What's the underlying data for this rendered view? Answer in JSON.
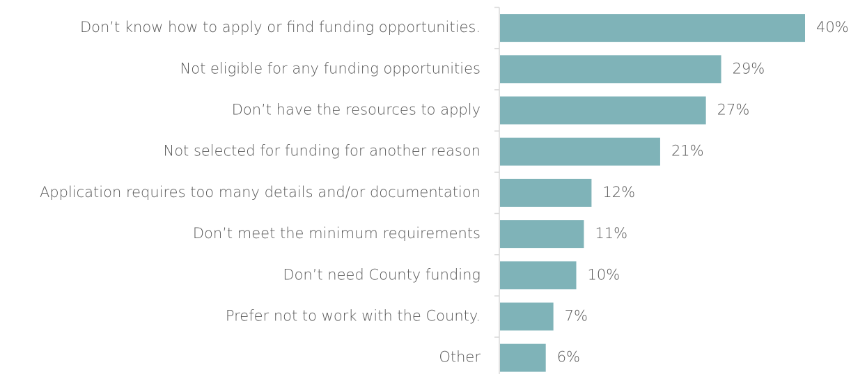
{
  "chart_data": {
    "type": "bar",
    "orientation": "horizontal",
    "categories": [
      "Don’t know how to apply or find funding opportunities.",
      "Not eligible for any funding opportunities",
      "Don’t have the resources to apply",
      "Not selected for funding for another reason",
      "Application requires too many details and/or documentation",
      "Don’t meet the minimum requirements",
      "Don’t need County funding",
      "Prefer not to work with the County.",
      "Other"
    ],
    "values": [
      40,
      29,
      27,
      21,
      12,
      11,
      10,
      7,
      6
    ],
    "value_labels": [
      "40%",
      "29%",
      "27%",
      "21%",
      "12%",
      "11%",
      "10%",
      "7%",
      "6%"
    ],
    "color": "#7fb3b8"
  }
}
